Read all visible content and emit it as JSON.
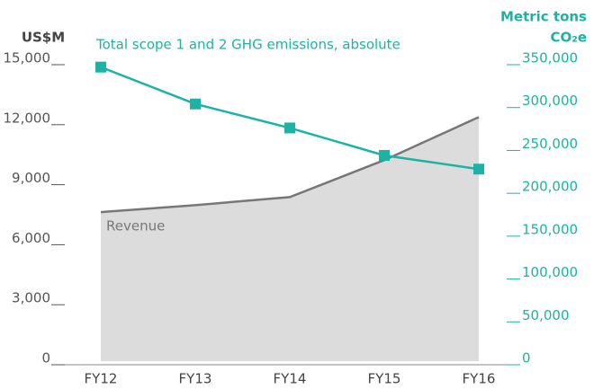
{
  "chart_data": {
    "type": "line",
    "y_label": "US$M",
    "y2_label_line1": "Metric tons",
    "y2_label_line2": "CO₂e",
    "categories": [
      "FY12",
      "FY13",
      "FY14",
      "FY15",
      "FY16"
    ],
    "series": [
      {
        "name": "Revenue",
        "color": "#777777",
        "fill": "#dcdcdd",
        "area": true,
        "values": [
          7450,
          7800,
          8200,
          10050,
          12200
        ]
      },
      {
        "name": "Total scope 1 and 2 GHG emissions, absolute",
        "color": "#1ab3a6",
        "axis": "y2",
        "marker": "square",
        "values": [
          343000,
          300000,
          272000,
          240000,
          224000
        ]
      }
    ],
    "ylim": [
      0,
      15000
    ],
    "yticks": [
      0,
      {
        "value": 3000,
        "label": "3,000"
      },
      {
        "value": 6000,
        "label": "6,000"
      },
      {
        "value": 9000,
        "label": "9,000"
      },
      {
        "value": 12000,
        "label": "12,000"
      },
      {
        "value": 15000,
        "label": "15,000"
      }
    ],
    "y2lim": [
      0,
      350000
    ],
    "y2ticks": [
      0,
      {
        "value": 50000,
        "label": "50,000"
      },
      {
        "value": 100000,
        "label": "100,000"
      },
      {
        "value": 150000,
        "label": "150,000"
      },
      {
        "value": 200000,
        "label": "200,000"
      },
      {
        "value": 250000,
        "label": "250,000"
      },
      {
        "value": 300000,
        "label": "300,000"
      },
      {
        "value": 350000,
        "label": "350,000"
      }
    ]
  }
}
